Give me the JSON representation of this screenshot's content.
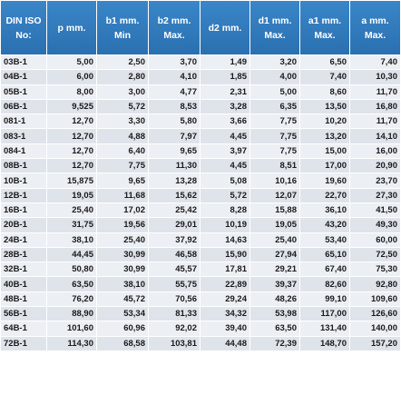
{
  "table": {
    "headers": [
      {
        "l1": "DIN ISO",
        "l2": "No:"
      },
      {
        "l1": "p mm.",
        "l2": ""
      },
      {
        "l1": "b1 mm.",
        "l2": "Min"
      },
      {
        "l1": "b2 mm.",
        "l2": "Max."
      },
      {
        "l1": "d2 mm.",
        "l2": ""
      },
      {
        "l1": "d1 mm.",
        "l2": "Max."
      },
      {
        "l1": "a1 mm.",
        "l2": "Max."
      },
      {
        "l1": "a mm.",
        "l2": "Max."
      }
    ],
    "rows": [
      [
        "03B-1",
        "5,00",
        "2,50",
        "3,70",
        "1,49",
        "3,20",
        "6,50",
        "7,40"
      ],
      [
        "04B-1",
        "6,00",
        "2,80",
        "4,10",
        "1,85",
        "4,00",
        "7,40",
        "10,30"
      ],
      [
        "05B-1",
        "8,00",
        "3,00",
        "4,77",
        "2,31",
        "5,00",
        "8,60",
        "11,70"
      ],
      [
        "06B-1",
        "9,525",
        "5,72",
        "8,53",
        "3,28",
        "6,35",
        "13,50",
        "16,80"
      ],
      [
        "081-1",
        "12,70",
        "3,30",
        "5,80",
        "3,66",
        "7,75",
        "10,20",
        "11,70"
      ],
      [
        "083-1",
        "12,70",
        "4,88",
        "7,97",
        "4,45",
        "7,75",
        "13,20",
        "14,10"
      ],
      [
        "084-1",
        "12,70",
        "6,40",
        "9,65",
        "3,97",
        "7,75",
        "15,00",
        "16,00"
      ],
      [
        "08B-1",
        "12,70",
        "7,75",
        "11,30",
        "4,45",
        "8,51",
        "17,00",
        "20,90"
      ],
      [
        "10B-1",
        "15,875",
        "9,65",
        "13,28",
        "5,08",
        "10,16",
        "19,60",
        "23,70"
      ],
      [
        "12B-1",
        "19,05",
        "11,68",
        "15,62",
        "5,72",
        "12,07",
        "22,70",
        "27,30"
      ],
      [
        "16B-1",
        "25,40",
        "17,02",
        "25,42",
        "8,28",
        "15,88",
        "36,10",
        "41,50"
      ],
      [
        "20B-1",
        "31,75",
        "19,56",
        "29,01",
        "10,19",
        "19,05",
        "43,20",
        "49,30"
      ],
      [
        "24B-1",
        "38,10",
        "25,40",
        "37,92",
        "14,63",
        "25,40",
        "53,40",
        "60,00"
      ],
      [
        "28B-1",
        "44,45",
        "30,99",
        "46,58",
        "15,90",
        "27,94",
        "65,10",
        "72,50"
      ],
      [
        "32B-1",
        "50,80",
        "30,99",
        "45,57",
        "17,81",
        "29,21",
        "67,40",
        "75,30"
      ],
      [
        "40B-1",
        "63,50",
        "38,10",
        "55,75",
        "22,89",
        "39,37",
        "82,60",
        "92,80"
      ],
      [
        "48B-1",
        "76,20",
        "45,72",
        "70,56",
        "29,24",
        "48,26",
        "99,10",
        "109,60"
      ],
      [
        "56B-1",
        "88,90",
        "53,34",
        "81,33",
        "34,32",
        "53,98",
        "117,00",
        "126,60"
      ],
      [
        "64B-1",
        "101,60",
        "60,96",
        "92,02",
        "39,40",
        "63,50",
        "131,40",
        "140,00"
      ],
      [
        "72B-1",
        "114,30",
        "68,58",
        "103,81",
        "44,48",
        "72,39",
        "148,70",
        "157,20"
      ]
    ]
  }
}
